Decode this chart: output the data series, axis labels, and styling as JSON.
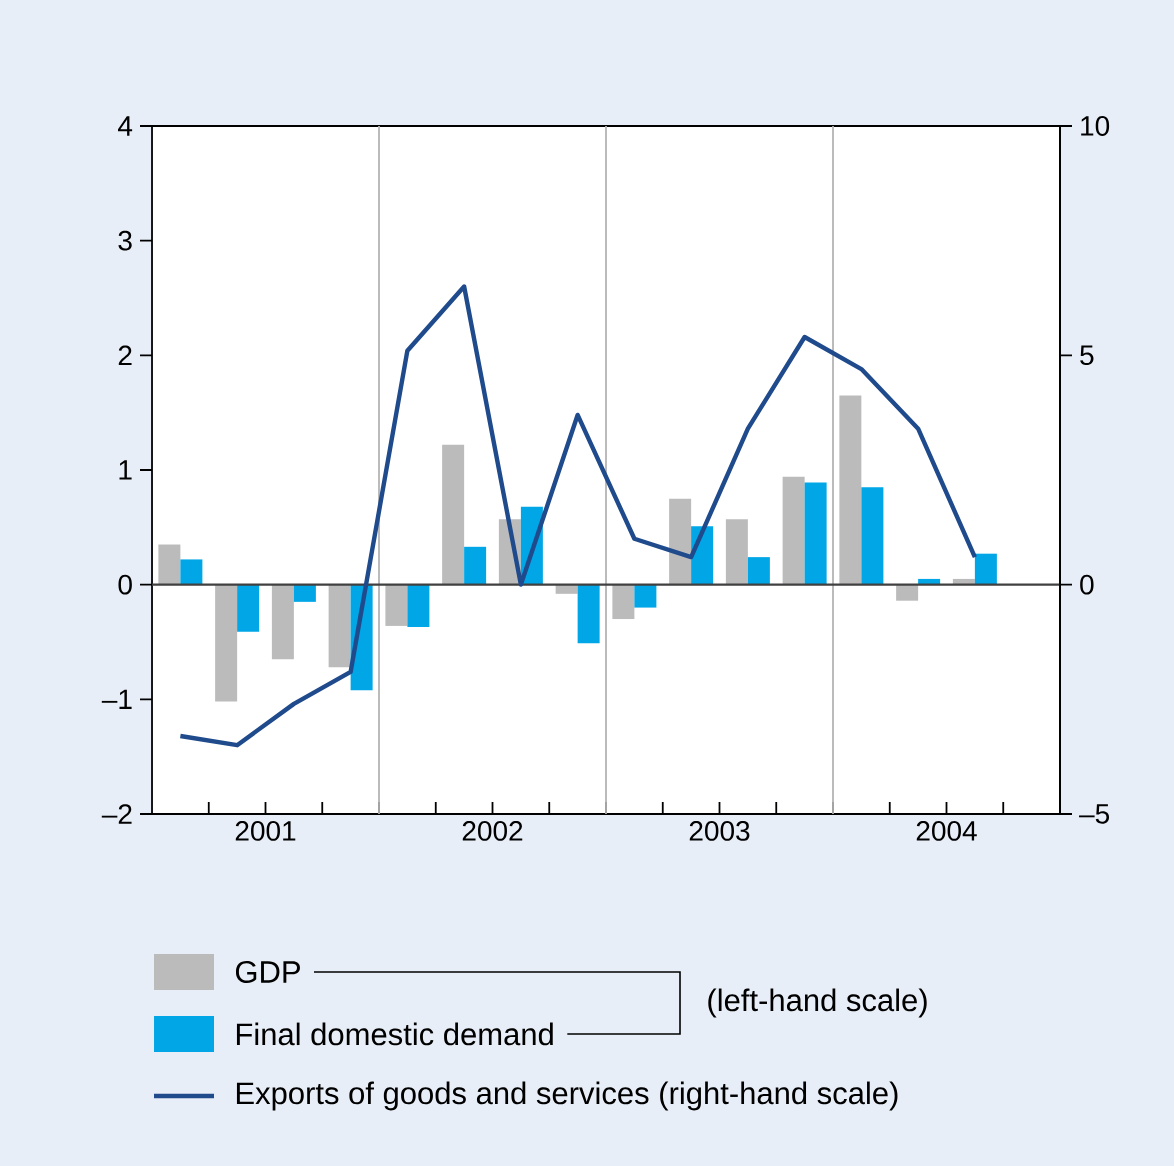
{
  "chart_data": {
    "type": "bar",
    "x": [
      2001.125,
      2001.375,
      2001.625,
      2001.875,
      2002.125,
      2002.375,
      2002.625,
      2002.875,
      2003.125,
      2003.375,
      2003.625,
      2003.875,
      2004.125,
      2004.375,
      2004.625
    ],
    "xlim": [
      2001,
      2005
    ],
    "xticks": [
      {
        "value": 2001.25,
        "label": null
      },
      {
        "value": 2001.5,
        "label": "2001"
      },
      {
        "value": 2001.75,
        "label": null
      },
      {
        "value": 2002,
        "label": null
      },
      {
        "value": 2002.25,
        "label": null
      },
      {
        "value": 2002.5,
        "label": "2002"
      },
      {
        "value": 2002.75,
        "label": null
      },
      {
        "value": 2003,
        "label": null
      },
      {
        "value": 2003.25,
        "label": null
      },
      {
        "value": 2003.5,
        "label": "2003"
      },
      {
        "value": 2003.75,
        "label": null
      },
      {
        "value": 2004,
        "label": null
      },
      {
        "value": 2004.25,
        "label": null
      },
      {
        "value": 2004.5,
        "label": "2004"
      },
      {
        "value": 2004.75,
        "label": null
      }
    ],
    "ylim": [
      -2,
      4
    ],
    "yticks": [
      {
        "value": -2,
        "label": "–2"
      },
      {
        "value": -1,
        "label": "–1"
      },
      0,
      1,
      2,
      3,
      4
    ],
    "y2lim": [
      -5,
      10
    ],
    "y2ticks": [
      {
        "value": -5,
        "label": "–5"
      },
      0,
      5,
      10
    ],
    "series": [
      {
        "name": "GDP",
        "color": "#bbbbbb",
        "values": [
          0.35,
          -1.02,
          -0.65,
          -0.72,
          -0.36,
          1.22,
          0.57,
          -0.08,
          -0.3,
          0.75,
          0.57,
          0.94,
          1.65,
          -0.14,
          0.05
        ]
      },
      {
        "name": "Final domestic demand",
        "color": "#00a6e6",
        "values": [
          0.22,
          -0.41,
          -0.15,
          -0.92,
          -0.37,
          0.33,
          0.68,
          -0.51,
          -0.2,
          0.51,
          0.24,
          0.89,
          0.85,
          0.05,
          0.27
        ]
      },
      {
        "name": "Exports of goods and services (right-hand scale)",
        "type": "line",
        "axis": "y2",
        "color": "#1f4a8c",
        "line_style": "solid",
        "values": [
          -3.3,
          -3.5,
          -2.6,
          -1.9,
          5.1,
          6.5,
          0.0,
          3.7,
          1.0,
          0.6,
          3.4,
          5.4,
          4.7,
          3.4,
          0.6
        ]
      }
    ],
    "ref_lines": [
      {
        "axis": "x",
        "value": 2002,
        "color": "#b4b4b4"
      },
      {
        "axis": "x",
        "value": 2003,
        "color": "#b4b4b4"
      },
      {
        "axis": "x",
        "value": 2004,
        "color": "#b4b4b4"
      },
      {
        "axis": "y",
        "value": 0,
        "color": "#404040"
      }
    ],
    "annotations": [
      "(left-hand scale)"
    ],
    "legend": "bottom"
  }
}
